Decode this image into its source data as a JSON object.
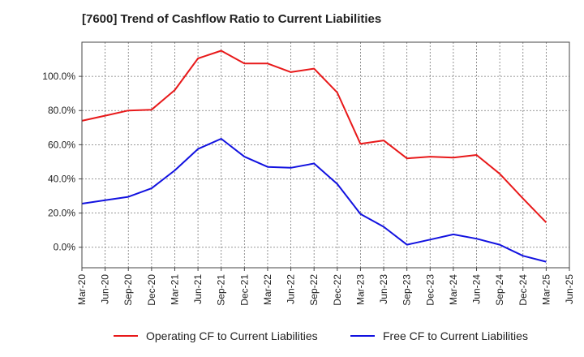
{
  "chart_data": {
    "type": "line",
    "title": "[7600]  Trend of Cashflow Ratio to Current Liabilities",
    "x": [
      "Mar-20",
      "Jun-20",
      "Sep-20",
      "Dec-20",
      "Mar-21",
      "Jun-21",
      "Sep-21",
      "Dec-21",
      "Mar-22",
      "Jun-22",
      "Sep-22",
      "Dec-22",
      "Mar-23",
      "Jun-23",
      "Sep-23",
      "Dec-23",
      "Mar-24",
      "Jun-24",
      "Sep-24",
      "Dec-24",
      "Mar-25",
      "Jun-25"
    ],
    "ylim": [
      -12,
      120
    ],
    "yticks": [
      0,
      20,
      40,
      60,
      80,
      100
    ],
    "ytick_labels": [
      "0.0%",
      "20.0%",
      "40.0%",
      "60.0%",
      "80.0%",
      "100.0%"
    ],
    "grid": true,
    "legend_position": "bottom",
    "series": [
      {
        "name": "Operating CF to Current Liabilities",
        "color": "#e8191a",
        "values": [
          74.0,
          77.0,
          80.0,
          80.5,
          92.0,
          110.5,
          115.0,
          107.5,
          107.5,
          102.5,
          104.5,
          90.5,
          60.5,
          62.5,
          52.0,
          53.0,
          52.5,
          54.0,
          43.0,
          28.5,
          14.5,
          null
        ]
      },
      {
        "name": "Free CF to Current Liabilities",
        "color": "#1212e0",
        "values": [
          25.5,
          27.5,
          29.5,
          34.5,
          45.0,
          57.5,
          63.5,
          53.0,
          47.0,
          46.5,
          49.0,
          37.0,
          19.5,
          12.0,
          1.5,
          4.5,
          7.5,
          5.0,
          1.5,
          -5.0,
          -8.5,
          null
        ]
      }
    ]
  }
}
